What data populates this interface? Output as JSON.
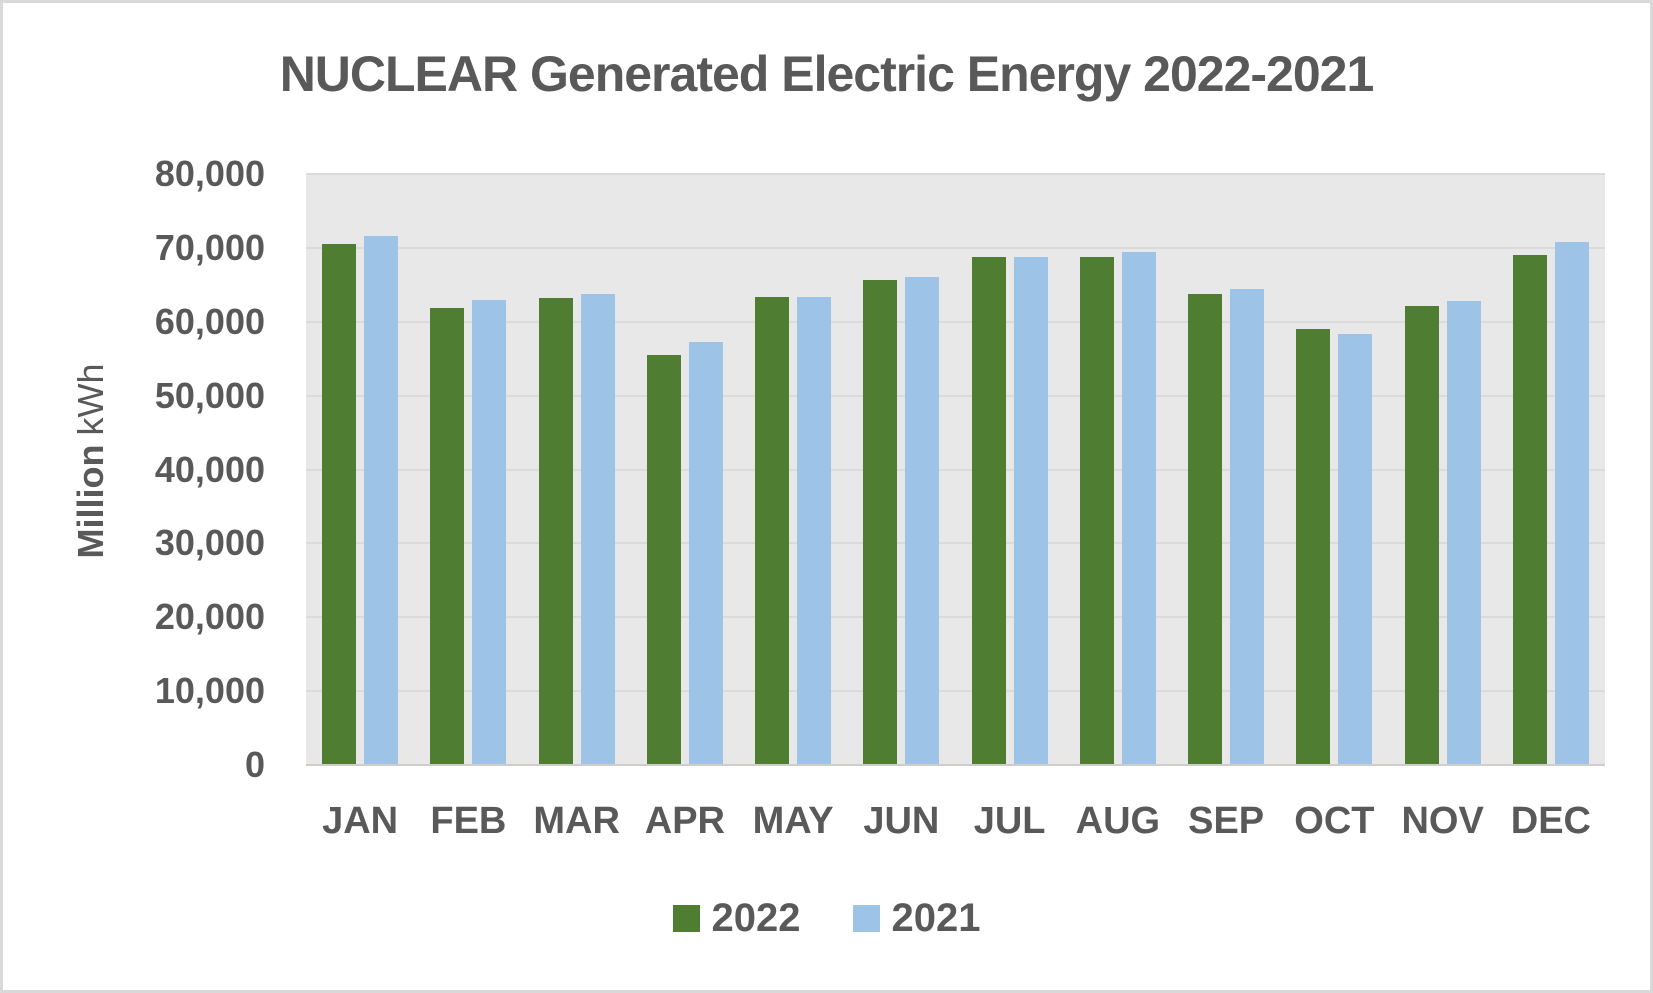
{
  "title": "NUCLEAR Generated Electric Energy 2022-2021",
  "colors": {
    "series_2022": "#4f7d31",
    "series_2021": "#9dc3e6",
    "plot_background": "#e9e8e8",
    "gridline": "#dcdbdb",
    "axis_line": "#cfccca",
    "text": "#595959",
    "frame_border": "#d9d9d9"
  },
  "chart_data": {
    "type": "bar",
    "title": "NUCLEAR Generated Electric Energy 2022-2021",
    "categories": [
      "JAN",
      "FEB",
      "MAR",
      "APR",
      "MAY",
      "JUN",
      "JUL",
      "AUG",
      "SEP",
      "OCT",
      "NOV",
      "DEC"
    ],
    "series": [
      {
        "name": "2022",
        "color": "#4f7d31",
        "values": [
          70500,
          61800,
          63200,
          55500,
          63400,
          65700,
          68800,
          68800,
          63700,
          59000,
          62100,
          69100
        ]
      },
      {
        "name": "2021",
        "color": "#9dc3e6",
        "values": [
          71600,
          62900,
          63700,
          57200,
          63400,
          66000,
          68800,
          69400,
          64500,
          58400,
          62800,
          70800
        ]
      }
    ],
    "xlabel": "",
    "ylabel_bold": "Million",
    "ylabel_regular": "kWh",
    "ylim": [
      0,
      80000
    ],
    "ytick_step": 10000,
    "yticks": [
      "80,000",
      "70,000",
      "60,000",
      "50,000",
      "40,000",
      "30,000",
      "20,000",
      "10,000",
      "0"
    ],
    "grid": "horizontal-only",
    "legend_position": "bottom-center"
  }
}
